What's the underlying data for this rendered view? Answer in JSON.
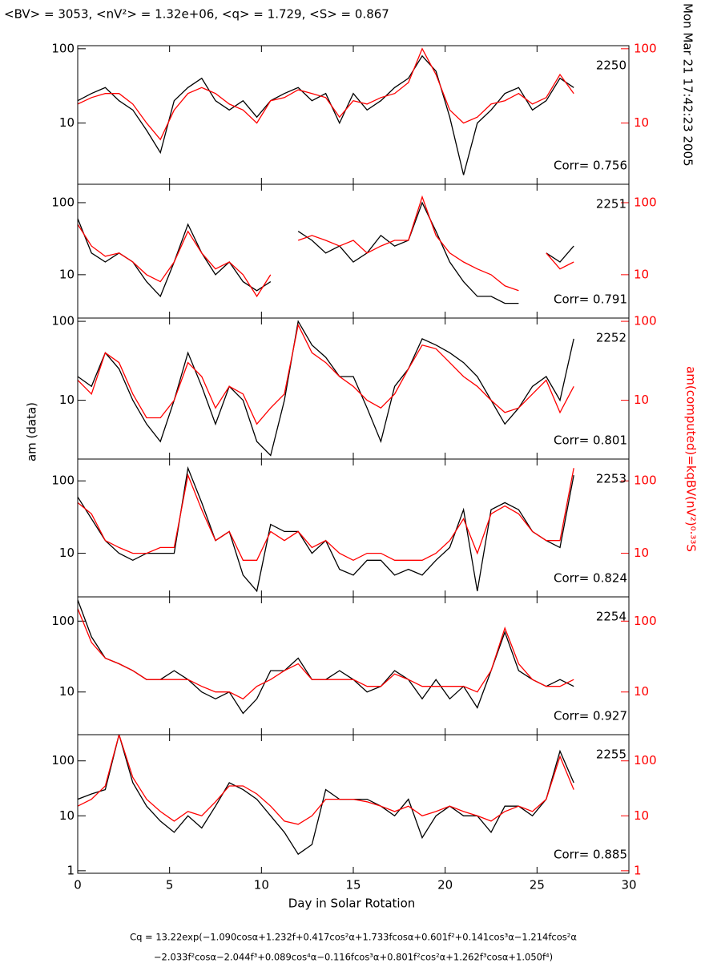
{
  "title": "<BV> = 3053, <nV²> = 1.32e+06, <q> = 1.729, <S> = 0.867",
  "timestamp": "Mon Mar 21 17:42:23 2005",
  "formula": [
    "Cq = 13.22exp(−1.090cosα+1.232f+0.417cos²α+1.733fcosα+0.601f²+0.141cos³α−1.214fcos²α",
    "−2.033f²cosα−2.044f³+0.089cos⁴α−0.116fcos³α+0.801f²cos²α+1.262f³cosα+1.050f⁴)"
  ],
  "chart_data": [
    {
      "type": "line",
      "log_scale": true,
      "annotations": [
        "2250",
        "Corr= 0.756"
      ],
      "x": [
        0,
        0.75,
        1.5,
        2.25,
        3,
        3.75,
        4.5,
        5.25,
        6,
        6.75,
        7.5,
        8.25,
        9,
        9.75,
        10.5,
        11.25,
        12,
        12.75,
        13.5,
        14.25,
        15,
        15.75,
        16.5,
        17.25,
        18,
        18.75,
        19.5,
        20.25,
        21,
        21.75,
        22.5,
        23.25,
        24,
        24.75,
        25.5,
        26.25,
        27
      ],
      "ylim": [
        1.5,
        110
      ],
      "yticks": [
        10,
        100
      ],
      "y2lim": [
        1.5,
        110
      ],
      "y2ticks": [
        10,
        100
      ],
      "series": [
        {
          "color": "#000000",
          "values": [
            20,
            25,
            30,
            20,
            15,
            8,
            4,
            20,
            30,
            40,
            20,
            15,
            20,
            12,
            20,
            25,
            30,
            20,
            25,
            10,
            25,
            15,
            20,
            30,
            40,
            80,
            50,
            12,
            2,
            10,
            15,
            25,
            30,
            15,
            20,
            40,
            30
          ]
        },
        {
          "color": "#ff0000",
          "axis": "y2",
          "values": [
            18,
            22,
            25,
            25,
            18,
            10,
            6,
            15,
            25,
            30,
            25,
            18,
            15,
            10,
            20,
            22,
            28,
            25,
            22,
            12,
            20,
            18,
            22,
            25,
            35,
            100,
            45,
            15,
            10,
            12,
            18,
            20,
            25,
            18,
            22,
            45,
            25
          ]
        }
      ]
    },
    {
      "type": "line",
      "log_scale": true,
      "annotations": [
        "2251",
        "Corr= 0.791"
      ],
      "x": [
        0,
        0.75,
        1.5,
        2.25,
        3,
        3.75,
        4.5,
        5.25,
        6,
        6.75,
        7.5,
        8.25,
        9,
        9.75,
        10.5,
        11.25,
        12,
        12.75,
        13.5,
        14.25,
        15,
        15.75,
        16.5,
        17.25,
        18,
        18.75,
        19.5,
        20.25,
        21,
        21.75,
        22.5,
        23.25,
        24,
        24.75,
        25.5,
        26.25,
        27
      ],
      "ylim": [
        2.5,
        180
      ],
      "yticks": [
        10,
        100
      ],
      "y2lim": [
        2.5,
        180
      ],
      "y2ticks": [
        10,
        100
      ],
      "series": [
        {
          "color": "#000000",
          "values": [
            60,
            20,
            15,
            20,
            15,
            8,
            5,
            15,
            50,
            20,
            10,
            15,
            8,
            6,
            8,
            null,
            40,
            30,
            20,
            25,
            15,
            20,
            35,
            25,
            30,
            100,
            40,
            15,
            8,
            5,
            5,
            4,
            4,
            null,
            20,
            15,
            25
          ]
        },
        {
          "color": "#ff0000",
          "axis": "y2",
          "values": [
            50,
            25,
            18,
            20,
            15,
            10,
            8,
            15,
            40,
            20,
            12,
            15,
            10,
            5,
            10,
            null,
            30,
            35,
            30,
            25,
            30,
            20,
            25,
            30,
            30,
            120,
            35,
            20,
            15,
            12,
            10,
            7,
            6,
            null,
            20,
            12,
            15
          ]
        }
      ]
    },
    {
      "type": "line",
      "log_scale": true,
      "annotations": [
        "2252",
        "Corr= 0.801"
      ],
      "x": [
        0,
        0.75,
        1.5,
        2.25,
        3,
        3.75,
        4.5,
        5.25,
        6,
        6.75,
        7.5,
        8.25,
        9,
        9.75,
        10.5,
        11.25,
        12,
        12.75,
        13.5,
        14.25,
        15,
        15.75,
        16.5,
        17.25,
        18,
        18.75,
        19.5,
        20.25,
        21,
        21.75,
        22.5,
        23.25,
        24,
        24.75,
        25.5,
        26.25,
        27
      ],
      "ylim": [
        1.8,
        110
      ],
      "yticks": [
        10,
        100
      ],
      "y2lim": [
        1.8,
        110
      ],
      "y2ticks": [
        10,
        100
      ],
      "series": [
        {
          "color": "#000000",
          "values": [
            20,
            15,
            40,
            25,
            10,
            5,
            3,
            10,
            40,
            15,
            5,
            15,
            10,
            3,
            2,
            10,
            100,
            50,
            35,
            20,
            20,
            8,
            3,
            15,
            25,
            60,
            50,
            40,
            30,
            20,
            10,
            5,
            8,
            15,
            20,
            10,
            60
          ]
        },
        {
          "color": "#ff0000",
          "axis": "y2",
          "values": [
            18,
            12,
            40,
            30,
            12,
            6,
            6,
            10,
            30,
            20,
            8,
            15,
            12,
            5,
            8,
            12,
            90,
            40,
            30,
            20,
            15,
            10,
            8,
            12,
            25,
            50,
            45,
            30,
            20,
            15,
            10,
            7,
            8,
            12,
            18,
            7,
            15
          ]
        }
      ]
    },
    {
      "type": "line",
      "log_scale": true,
      "annotations": [
        "2253",
        "Corr= 0.824"
      ],
      "ylabel": "am (data)",
      "y2label": "am(computed)=kqBV(nV²)⁰·³³S",
      "x": [
        0,
        0.75,
        1.5,
        2.25,
        3,
        3.75,
        4.5,
        5.25,
        6,
        6.75,
        7.5,
        8.25,
        9,
        9.75,
        10.5,
        11.25,
        12,
        12.75,
        13.5,
        14.25,
        15,
        15.75,
        16.5,
        17.25,
        18,
        18.75,
        19.5,
        20.25,
        21,
        21.75,
        22.5,
        23.25,
        24,
        24.75,
        25.5,
        26.25,
        27
      ],
      "ylim": [
        2.5,
        200
      ],
      "yticks": [
        10,
        100
      ],
      "y2lim": [
        2.5,
        200
      ],
      "y2ticks": [
        10,
        100
      ],
      "series": [
        {
          "color": "#000000",
          "values": [
            60,
            30,
            15,
            10,
            8,
            10,
            10,
            10,
            150,
            50,
            15,
            20,
            5,
            3,
            25,
            20,
            20,
            10,
            15,
            6,
            5,
            8,
            8,
            5,
            6,
            5,
            8,
            12,
            40,
            3,
            40,
            50,
            40,
            20,
            15,
            12,
            120
          ]
        },
        {
          "color": "#ff0000",
          "axis": "y2",
          "values": [
            50,
            35,
            15,
            12,
            10,
            10,
            12,
            12,
            120,
            40,
            15,
            20,
            8,
            8,
            20,
            15,
            20,
            12,
            15,
            10,
            8,
            10,
            10,
            8,
            8,
            8,
            10,
            15,
            30,
            10,
            35,
            45,
            35,
            20,
            15,
            15,
            150
          ]
        }
      ]
    },
    {
      "type": "line",
      "log_scale": true,
      "annotations": [
        "2254",
        "Corr= 0.927"
      ],
      "x": [
        0,
        0.75,
        1.5,
        2.25,
        3,
        3.75,
        4.5,
        5.25,
        6,
        6.75,
        7.5,
        8.25,
        9,
        9.75,
        10.5,
        11.25,
        12,
        12.75,
        13.5,
        14.25,
        15,
        15.75,
        16.5,
        17.25,
        18,
        18.75,
        19.5,
        20.25,
        21,
        21.75,
        22.5,
        23.25,
        24,
        24.75,
        25.5,
        26.25,
        27
      ],
      "ylim": [
        2.5,
        220
      ],
      "yticks": [
        10,
        100
      ],
      "y2lim": [
        2.5,
        220
      ],
      "y2ticks": [
        10,
        100
      ],
      "series": [
        {
          "color": "#000000",
          "values": [
            200,
            60,
            30,
            25,
            20,
            15,
            15,
            20,
            15,
            10,
            8,
            10,
            5,
            8,
            20,
            20,
            30,
            15,
            15,
            20,
            15,
            10,
            12,
            20,
            15,
            8,
            15,
            8,
            12,
            6,
            20,
            70,
            20,
            15,
            12,
            15,
            12
          ]
        },
        {
          "color": "#ff0000",
          "axis": "y2",
          "values": [
            150,
            50,
            30,
            25,
            20,
            15,
            15,
            15,
            15,
            12,
            10,
            10,
            8,
            12,
            15,
            20,
            25,
            15,
            15,
            15,
            15,
            12,
            12,
            18,
            15,
            12,
            12,
            12,
            12,
            10,
            20,
            80,
            25,
            15,
            12,
            12,
            15
          ]
        }
      ]
    },
    {
      "type": "line",
      "log_scale": true,
      "annotations": [
        "2255",
        "Corr= 0.885"
      ],
      "xlabel": "Day in Solar Rotation",
      "xlim": [
        0,
        30
      ],
      "xticks": [
        0,
        5,
        10,
        15,
        20,
        25,
        30
      ],
      "x": [
        0,
        0.75,
        1.5,
        2.25,
        3,
        3.75,
        4.5,
        5.25,
        6,
        6.75,
        7.5,
        8.25,
        9,
        9.75,
        10.5,
        11.25,
        12,
        12.75,
        13.5,
        14.25,
        15,
        15.75,
        16.5,
        17.25,
        18,
        18.75,
        19.5,
        20.25,
        21,
        21.75,
        22.5,
        23.25,
        24,
        24.75,
        25.5,
        26.25,
        27
      ],
      "ylim": [
        0.9,
        300
      ],
      "yticks": [
        1,
        10,
        100
      ],
      "y2lim": [
        0.9,
        300
      ],
      "y2ticks": [
        1,
        10,
        100
      ],
      "series": [
        {
          "color": "#000000",
          "values": [
            20,
            25,
            30,
            300,
            40,
            15,
            8,
            5,
            10,
            6,
            15,
            40,
            30,
            20,
            10,
            5,
            2,
            3,
            30,
            20,
            20,
            20,
            15,
            10,
            20,
            4,
            10,
            15,
            10,
            10,
            5,
            15,
            15,
            10,
            20,
            150,
            40
          ]
        },
        {
          "color": "#ff0000",
          "axis": "y2",
          "values": [
            15,
            20,
            35,
            300,
            50,
            20,
            12,
            8,
            12,
            10,
            18,
            35,
            35,
            25,
            15,
            8,
            7,
            10,
            20,
            20,
            20,
            18,
            15,
            12,
            15,
            10,
            12,
            15,
            12,
            10,
            8,
            12,
            15,
            12,
            20,
            120,
            30
          ]
        }
      ]
    }
  ]
}
